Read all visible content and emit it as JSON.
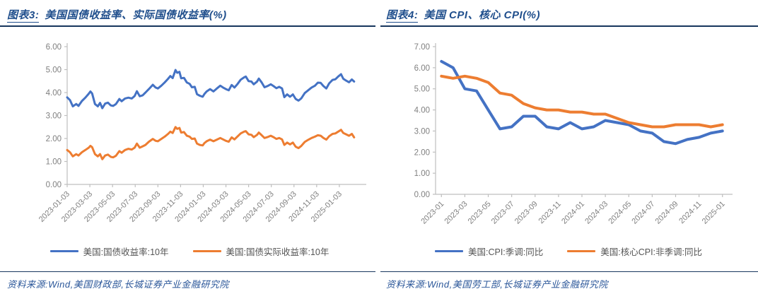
{
  "panels": [
    {
      "title_prefix": "图表3:",
      "title": "美国国债收益率、实际国债收益率(%)",
      "source": "资料来源:Wind,美国财政部,长城证券产业金融研究院"
    },
    {
      "title_prefix": "图表4:",
      "title": "美国 CPI、核心 CPI(%)",
      "source": "资料来源:Wind,美国劳工部,长城证券产业金融研究院"
    }
  ],
  "style": {
    "axis_color": "#bfbfbf",
    "tick_label_color": "#808080",
    "series_blue": "#4472C4",
    "series_orange": "#ED7D31"
  },
  "chart_data": [
    {
      "type": "line",
      "title": "美国国债收益率、实际国债收益率(%)",
      "xlabel": "",
      "ylabel": "",
      "ylim": [
        0,
        6
      ],
      "ytick_step": 1,
      "ytick_format": "0.00 to 6.00",
      "grid": false,
      "legend_position": "bottom",
      "x_unit": "months since 2023-01-03, daily series",
      "x_ticks": [
        {
          "x": 0,
          "label": "2023-01-03"
        },
        {
          "x": 2,
          "label": "2023-03-03"
        },
        {
          "x": 4,
          "label": "2023-05-03"
        },
        {
          "x": 6,
          "label": "2023-07-03"
        },
        {
          "x": 8,
          "label": "2023-09-03"
        },
        {
          "x": 10,
          "label": "2023-11-03"
        },
        {
          "x": 12,
          "label": "2024-01-03"
        },
        {
          "x": 14,
          "label": "2024-03-03"
        },
        {
          "x": 16,
          "label": "2024-05-03"
        },
        {
          "x": 18,
          "label": "2024-07-03"
        },
        {
          "x": 20,
          "label": "2024-09-03"
        },
        {
          "x": 22,
          "label": "2024-11-03"
        },
        {
          "x": 24,
          "label": "2025-01-03"
        }
      ],
      "series": [
        {
          "name": "美国:国债收益率:10年",
          "color": "#4472C4",
          "points": [
            [
              0,
              3.79
            ],
            [
              0.25,
              3.67
            ],
            [
              0.5,
              3.4
            ],
            [
              0.8,
              3.5
            ],
            [
              1.0,
              3.42
            ],
            [
              1.3,
              3.63
            ],
            [
              1.6,
              3.78
            ],
            [
              1.9,
              3.95
            ],
            [
              2.05,
              4.05
            ],
            [
              2.2,
              3.96
            ],
            [
              2.45,
              3.5
            ],
            [
              2.7,
              3.4
            ],
            [
              2.9,
              3.55
            ],
            [
              3.1,
              3.32
            ],
            [
              3.35,
              3.52
            ],
            [
              3.6,
              3.56
            ],
            [
              3.85,
              3.44
            ],
            [
              4.05,
              3.42
            ],
            [
              4.3,
              3.5
            ],
            [
              4.6,
              3.72
            ],
            [
              4.8,
              3.62
            ],
            [
              5.1,
              3.74
            ],
            [
              5.4,
              3.78
            ],
            [
              5.7,
              3.74
            ],
            [
              5.95,
              3.85
            ],
            [
              6.15,
              4.06
            ],
            [
              6.4,
              3.84
            ],
            [
              6.65,
              3.88
            ],
            [
              6.9,
              4.0
            ],
            [
              7.2,
              4.15
            ],
            [
              7.55,
              4.34
            ],
            [
              7.8,
              4.22
            ],
            [
              8.0,
              4.18
            ],
            [
              8.3,
              4.3
            ],
            [
              8.6,
              4.44
            ],
            [
              8.9,
              4.6
            ],
            [
              9.1,
              4.72
            ],
            [
              9.3,
              4.63
            ],
            [
              9.55,
              4.98
            ],
            [
              9.7,
              4.86
            ],
            [
              9.9,
              4.9
            ],
            [
              10.05,
              4.62
            ],
            [
              10.3,
              4.64
            ],
            [
              10.55,
              4.44
            ],
            [
              10.8,
              4.38
            ],
            [
              11.0,
              4.23
            ],
            [
              11.25,
              4.25
            ],
            [
              11.45,
              3.93
            ],
            [
              11.7,
              3.86
            ],
            [
              11.95,
              3.82
            ],
            [
              12.1,
              3.94
            ],
            [
              12.3,
              4.05
            ],
            [
              12.6,
              4.15
            ],
            [
              12.9,
              4.05
            ],
            [
              13.2,
              4.18
            ],
            [
              13.5,
              4.3
            ],
            [
              13.75,
              4.22
            ],
            [
              14.0,
              4.15
            ],
            [
              14.25,
              4.1
            ],
            [
              14.5,
              4.33
            ],
            [
              14.75,
              4.22
            ],
            [
              15.0,
              4.36
            ],
            [
              15.3,
              4.56
            ],
            [
              15.6,
              4.66
            ],
            [
              15.75,
              4.7
            ],
            [
              16.0,
              4.5
            ],
            [
              16.25,
              4.48
            ],
            [
              16.45,
              4.36
            ],
            [
              16.75,
              4.48
            ],
            [
              16.9,
              4.61
            ],
            [
              17.15,
              4.44
            ],
            [
              17.4,
              4.23
            ],
            [
              17.65,
              4.28
            ],
            [
              17.95,
              4.36
            ],
            [
              18.2,
              4.28
            ],
            [
              18.45,
              4.19
            ],
            [
              18.7,
              4.25
            ],
            [
              18.95,
              4.18
            ],
            [
              19.15,
              3.8
            ],
            [
              19.4,
              3.92
            ],
            [
              19.65,
              3.82
            ],
            [
              19.9,
              3.92
            ],
            [
              20.15,
              3.72
            ],
            [
              20.4,
              3.65
            ],
            [
              20.65,
              3.75
            ],
            [
              20.95,
              3.98
            ],
            [
              21.25,
              4.1
            ],
            [
              21.55,
              4.22
            ],
            [
              21.85,
              4.3
            ],
            [
              22.1,
              4.43
            ],
            [
              22.35,
              4.42
            ],
            [
              22.6,
              4.28
            ],
            [
              22.85,
              4.18
            ],
            [
              23.1,
              4.4
            ],
            [
              23.4,
              4.55
            ],
            [
              23.65,
              4.58
            ],
            [
              23.9,
              4.7
            ],
            [
              24.15,
              4.8
            ],
            [
              24.35,
              4.6
            ],
            [
              24.6,
              4.52
            ],
            [
              24.85,
              4.45
            ],
            [
              25.1,
              4.57
            ],
            [
              25.3,
              4.48
            ]
          ]
        },
        {
          "name": "美国:国债实际收益率:10年",
          "color": "#ED7D31",
          "points": [
            [
              0,
              1.5
            ],
            [
              0.25,
              1.4
            ],
            [
              0.5,
              1.22
            ],
            [
              0.8,
              1.32
            ],
            [
              1.0,
              1.26
            ],
            [
              1.3,
              1.4
            ],
            [
              1.6,
              1.5
            ],
            [
              1.9,
              1.6
            ],
            [
              2.05,
              1.68
            ],
            [
              2.2,
              1.62
            ],
            [
              2.45,
              1.32
            ],
            [
              2.7,
              1.22
            ],
            [
              2.9,
              1.32
            ],
            [
              3.1,
              1.1
            ],
            [
              3.35,
              1.26
            ],
            [
              3.6,
              1.3
            ],
            [
              3.85,
              1.2
            ],
            [
              4.05,
              1.18
            ],
            [
              4.3,
              1.25
            ],
            [
              4.6,
              1.45
            ],
            [
              4.8,
              1.38
            ],
            [
              5.1,
              1.5
            ],
            [
              5.4,
              1.55
            ],
            [
              5.7,
              1.52
            ],
            [
              5.95,
              1.6
            ],
            [
              6.15,
              1.78
            ],
            [
              6.4,
              1.6
            ],
            [
              6.65,
              1.66
            ],
            [
              6.9,
              1.72
            ],
            [
              7.2,
              1.86
            ],
            [
              7.55,
              1.98
            ],
            [
              7.8,
              1.9
            ],
            [
              8.0,
              1.88
            ],
            [
              8.3,
              1.98
            ],
            [
              8.6,
              2.08
            ],
            [
              8.9,
              2.2
            ],
            [
              9.1,
              2.3
            ],
            [
              9.3,
              2.24
            ],
            [
              9.55,
              2.5
            ],
            [
              9.7,
              2.42
            ],
            [
              9.9,
              2.46
            ],
            [
              10.05,
              2.26
            ],
            [
              10.3,
              2.28
            ],
            [
              10.55,
              2.12
            ],
            [
              10.8,
              2.08
            ],
            [
              11.0,
              1.98
            ],
            [
              11.25,
              2.0
            ],
            [
              11.45,
              1.78
            ],
            [
              11.7,
              1.72
            ],
            [
              11.95,
              1.7
            ],
            [
              12.1,
              1.8
            ],
            [
              12.3,
              1.88
            ],
            [
              12.6,
              1.95
            ],
            [
              12.9,
              1.88
            ],
            [
              13.2,
              1.95
            ],
            [
              13.5,
              2.02
            ],
            [
              13.75,
              1.96
            ],
            [
              14.0,
              1.9
            ],
            [
              14.25,
              1.86
            ],
            [
              14.5,
              2.05
            ],
            [
              14.75,
              1.96
            ],
            [
              15.0,
              2.08
            ],
            [
              15.3,
              2.22
            ],
            [
              15.6,
              2.3
            ],
            [
              15.75,
              2.32
            ],
            [
              16.0,
              2.18
            ],
            [
              16.25,
              2.16
            ],
            [
              16.45,
              2.06
            ],
            [
              16.75,
              2.16
            ],
            [
              16.9,
              2.26
            ],
            [
              17.15,
              2.14
            ],
            [
              17.4,
              2.02
            ],
            [
              17.65,
              2.06
            ],
            [
              17.95,
              2.12
            ],
            [
              18.2,
              2.06
            ],
            [
              18.45,
              1.98
            ],
            [
              18.7,
              2.02
            ],
            [
              18.95,
              1.96
            ],
            [
              19.15,
              1.72
            ],
            [
              19.4,
              1.82
            ],
            [
              19.65,
              1.74
            ],
            [
              19.9,
              1.82
            ],
            [
              20.15,
              1.64
            ],
            [
              20.4,
              1.58
            ],
            [
              20.65,
              1.68
            ],
            [
              20.95,
              1.85
            ],
            [
              21.25,
              1.94
            ],
            [
              21.55,
              2.02
            ],
            [
              21.85,
              2.08
            ],
            [
              22.1,
              2.14
            ],
            [
              22.35,
              2.12
            ],
            [
              22.6,
              2.02
            ],
            [
              22.85,
              1.95
            ],
            [
              23.1,
              2.1
            ],
            [
              23.4,
              2.2
            ],
            [
              23.65,
              2.22
            ],
            [
              23.9,
              2.3
            ],
            [
              24.15,
              2.38
            ],
            [
              24.35,
              2.24
            ],
            [
              24.6,
              2.18
            ],
            [
              24.85,
              2.12
            ],
            [
              25.1,
              2.2
            ],
            [
              25.3,
              2.05
            ]
          ]
        }
      ]
    },
    {
      "type": "line",
      "title": "美国 CPI、核心 CPI(%)",
      "xlabel": "",
      "ylabel": "",
      "ylim": [
        0,
        7
      ],
      "ytick_step": 1,
      "ytick_format": "0.00 to 7.00",
      "grid": false,
      "legend_position": "bottom",
      "categories": [
        "2023-01",
        "2023-02",
        "2023-03",
        "2023-04",
        "2023-05",
        "2023-06",
        "2023-07",
        "2023-08",
        "2023-09",
        "2023-10",
        "2023-11",
        "2023-12",
        "2024-01",
        "2024-02",
        "2024-03",
        "2024-04",
        "2024-05",
        "2024-06",
        "2024-07",
        "2024-08",
        "2024-09",
        "2024-10",
        "2024-11",
        "2024-12",
        "2025-01"
      ],
      "x_ticks": [
        {
          "x": 0,
          "label": "2023-01"
        },
        {
          "x": 2,
          "label": "2023-03"
        },
        {
          "x": 4,
          "label": "2023-05"
        },
        {
          "x": 6,
          "label": "2023-07"
        },
        {
          "x": 8,
          "label": "2023-09"
        },
        {
          "x": 10,
          "label": "2023-11"
        },
        {
          "x": 12,
          "label": "2024-01"
        },
        {
          "x": 14,
          "label": "2024-03"
        },
        {
          "x": 16,
          "label": "2024-05"
        },
        {
          "x": 18,
          "label": "2024-07"
        },
        {
          "x": 20,
          "label": "2024-09"
        },
        {
          "x": 22,
          "label": "2024-11"
        },
        {
          "x": 24,
          "label": "2025-01"
        }
      ],
      "series": [
        {
          "name": "美国:CPI:季调:同比",
          "color": "#4472C4",
          "values": [
            6.3,
            6.0,
            5.0,
            4.9,
            4.0,
            3.1,
            3.2,
            3.7,
            3.7,
            3.2,
            3.1,
            3.4,
            3.1,
            3.2,
            3.5,
            3.4,
            3.3,
            3.0,
            2.9,
            2.5,
            2.4,
            2.6,
            2.7,
            2.9,
            3.0
          ]
        },
        {
          "name": "美国:核心CPI:非季调:同比",
          "color": "#ED7D31",
          "values": [
            5.6,
            5.5,
            5.6,
            5.5,
            5.3,
            4.8,
            4.7,
            4.3,
            4.1,
            4.0,
            4.0,
            3.9,
            3.9,
            3.8,
            3.8,
            3.6,
            3.4,
            3.3,
            3.2,
            3.2,
            3.3,
            3.3,
            3.3,
            3.2,
            3.3
          ]
        }
      ]
    }
  ]
}
